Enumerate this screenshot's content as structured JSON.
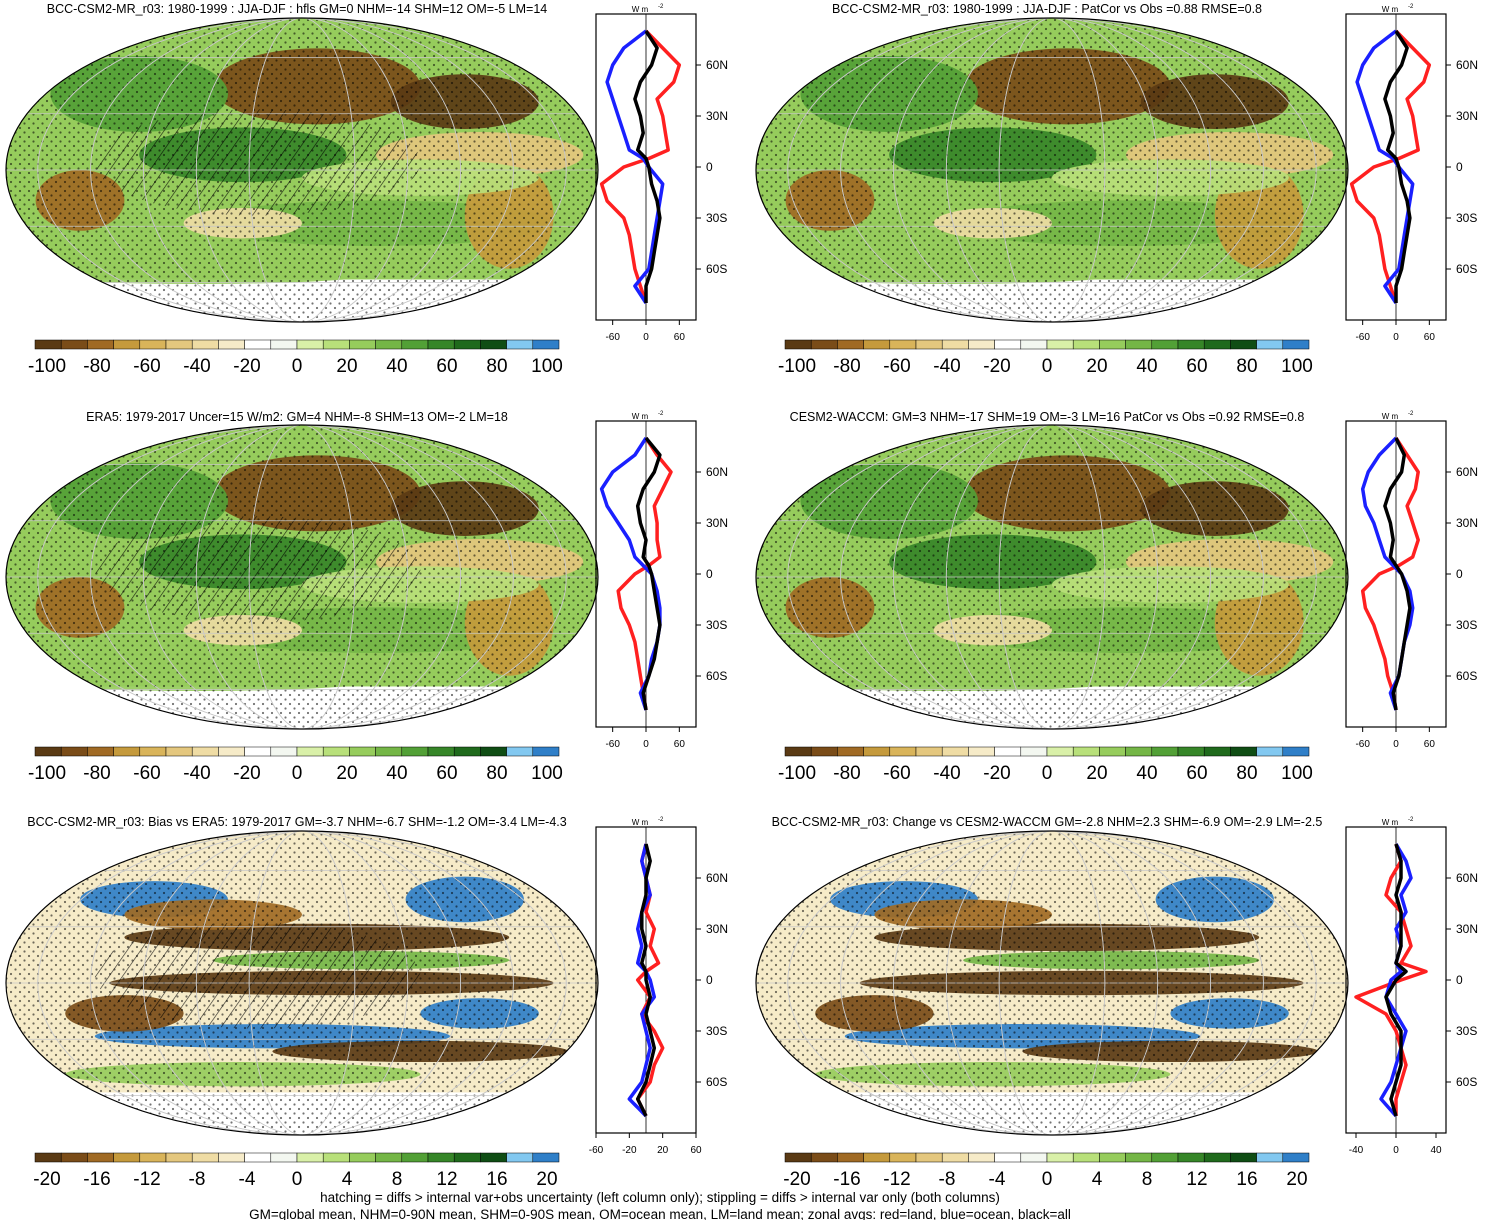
{
  "palette": {
    "diverging": [
      "#5a3a14",
      "#7a4c18",
      "#a06a24",
      "#c59a3c",
      "#d9b45a",
      "#e4c77e",
      "#efdca4",
      "#f6ebc8",
      "#ffffff",
      "#f3f7f0",
      "#d9f0a8",
      "#b8e07a",
      "#96cc5c",
      "#74b646",
      "#52a036",
      "#368628",
      "#1f6a1c",
      "#0f4d14",
      "#82c8f0",
      "#2f7fc8"
    ],
    "ocean_blue": "#2f7fc8",
    "land_red": "#ff2020",
    "ocean_line": "#1a20ff",
    "all_line": "#000000"
  },
  "zonal_axis": {
    "units": "W m",
    "units_sup": "-2",
    "lat_ticks": [
      "60N",
      "30N",
      "0",
      "30S",
      "60S"
    ]
  },
  "panels": [
    {
      "id": "p1",
      "title": "BCC-CSM2-MR_r03: 1980-1999 : JJA-DJF : hfls GM=0 NHM=-14 SHM=12 OM=-5 LM=14",
      "colorbar_labels": [
        "-100",
        "-80",
        "-60",
        "-40",
        "-20",
        "0",
        "20",
        "40",
        "60",
        "80",
        "100"
      ],
      "zonal_ticks": [
        "-60",
        "0",
        "60"
      ],
      "zonal_range": [
        -90,
        90
      ],
      "hatched": true,
      "zonal": {
        "lat": [
          80,
          70,
          60,
          50,
          40,
          30,
          20,
          10,
          5,
          0,
          -10,
          -20,
          -30,
          -40,
          -50,
          -60,
          -70,
          -80
        ],
        "land": [
          0,
          30,
          60,
          50,
          20,
          30,
          35,
          40,
          5,
          -40,
          -80,
          -70,
          -40,
          -30,
          -25,
          -20,
          -10,
          0
        ],
        "ocean": [
          0,
          -40,
          -60,
          -70,
          -60,
          -50,
          -40,
          -30,
          -5,
          5,
          30,
          25,
          20,
          15,
          10,
          5,
          -20,
          0
        ],
        "all": [
          0,
          20,
          10,
          -10,
          -20,
          -10,
          -5,
          -15,
          0,
          5,
          10,
          20,
          25,
          20,
          15,
          10,
          0,
          0
        ]
      }
    },
    {
      "id": "p2",
      "title": "BCC-CSM2-MR_r03: 1980-1999 : JJA-DJF : PatCor vs Obs =0.88 RMSE=0.8",
      "colorbar_labels": [
        "-100",
        "-80",
        "-60",
        "-40",
        "-20",
        "0",
        "20",
        "40",
        "60",
        "80",
        "100"
      ],
      "zonal_ticks": [
        "-60",
        "0",
        "60"
      ],
      "zonal_range": [
        -90,
        90
      ],
      "hatched": false,
      "zonal": {
        "lat": [
          80,
          70,
          60,
          50,
          40,
          30,
          20,
          10,
          5,
          0,
          -10,
          -20,
          -30,
          -40,
          -50,
          -60,
          -70,
          -80
        ],
        "land": [
          0,
          30,
          60,
          50,
          20,
          30,
          35,
          40,
          5,
          -40,
          -80,
          -70,
          -40,
          -30,
          -25,
          -20,
          -10,
          0
        ],
        "ocean": [
          0,
          -40,
          -60,
          -70,
          -60,
          -50,
          -40,
          -30,
          -5,
          5,
          30,
          25,
          20,
          15,
          10,
          5,
          -20,
          0
        ],
        "all": [
          0,
          20,
          10,
          -10,
          -20,
          -10,
          -5,
          -15,
          0,
          5,
          10,
          20,
          25,
          20,
          15,
          10,
          0,
          0
        ]
      }
    },
    {
      "id": "p3",
      "title": "ERA5: 1979-2017 Uncer=15 W/m2: GM=4 NHM=-8 SHM=13 OM=-2 LM=18",
      "colorbar_labels": [
        "-100",
        "-80",
        "-60",
        "-40",
        "-20",
        "0",
        "20",
        "40",
        "60",
        "80",
        "100"
      ],
      "zonal_ticks": [
        "-60",
        "0",
        "60"
      ],
      "zonal_range": [
        -90,
        90
      ],
      "hatched": true,
      "zonal": {
        "lat": [
          80,
          70,
          60,
          50,
          40,
          30,
          20,
          10,
          5,
          0,
          -10,
          -20,
          -30,
          -40,
          -50,
          -60,
          -70,
          -80
        ],
        "land": [
          0,
          20,
          45,
          30,
          15,
          20,
          20,
          25,
          5,
          -20,
          -50,
          -45,
          -30,
          -20,
          -15,
          -10,
          -5,
          0
        ],
        "ocean": [
          0,
          -20,
          -60,
          -80,
          -70,
          -50,
          -30,
          -20,
          -5,
          10,
          20,
          25,
          25,
          20,
          10,
          5,
          -10,
          0
        ],
        "all": [
          0,
          25,
          15,
          -5,
          -15,
          -10,
          0,
          -5,
          5,
          10,
          15,
          20,
          25,
          20,
          15,
          5,
          -5,
          0
        ]
      }
    },
    {
      "id": "p4",
      "title": "CESM2-WACCM: GM=3 NHM=-17 SHM=19 OM=-3 LM=16 PatCor vs Obs =0.92 RMSE=0.8",
      "colorbar_labels": [
        "-100",
        "-80",
        "-60",
        "-40",
        "-20",
        "0",
        "20",
        "40",
        "60",
        "80",
        "100"
      ],
      "zonal_ticks": [
        "-60",
        "0",
        "60"
      ],
      "zonal_range": [
        -90,
        90
      ],
      "hatched": false,
      "zonal": {
        "lat": [
          80,
          70,
          60,
          50,
          40,
          30,
          20,
          10,
          5,
          0,
          -10,
          -20,
          -30,
          -40,
          -50,
          -60,
          -70,
          -80
        ],
        "land": [
          0,
          20,
          40,
          35,
          20,
          30,
          40,
          30,
          5,
          -30,
          -60,
          -55,
          -40,
          -30,
          -20,
          -15,
          -5,
          0
        ],
        "ocean": [
          0,
          -30,
          -50,
          -60,
          -55,
          -40,
          -30,
          -20,
          -5,
          10,
          25,
          30,
          25,
          15,
          10,
          5,
          -10,
          0
        ],
        "all": [
          0,
          15,
          10,
          -10,
          -20,
          -10,
          -5,
          -10,
          0,
          10,
          20,
          25,
          20,
          15,
          10,
          5,
          -5,
          0
        ]
      }
    },
    {
      "id": "p5",
      "title": "BCC-CSM2-MR_r03: Bias vs ERA5: 1979-2017 GM=-3.7 NHM=-6.7 SHM=-1.2 OM=-3.4 LM=-4.3",
      "colorbar_labels": [
        "-20",
        "-16",
        "-12",
        "-8",
        "-4",
        "0",
        "4",
        "8",
        "12",
        "16",
        "20"
      ],
      "zonal_ticks": [
        "-60",
        "-20",
        "20",
        "60"
      ],
      "zonal_range": [
        -60,
        60
      ],
      "hatched": true,
      "zonal": {
        "lat": [
          80,
          70,
          60,
          50,
          40,
          30,
          20,
          10,
          5,
          0,
          -10,
          -20,
          -30,
          -40,
          -50,
          -60,
          -70,
          -80
        ],
        "land": [
          0,
          -5,
          0,
          5,
          0,
          10,
          5,
          15,
          0,
          -10,
          5,
          -5,
          10,
          20,
          10,
          5,
          -10,
          0
        ],
        "ocean": [
          0,
          -5,
          0,
          5,
          -5,
          -10,
          -5,
          -10,
          0,
          5,
          10,
          -5,
          0,
          5,
          0,
          -5,
          -20,
          0
        ],
        "all": [
          0,
          5,
          0,
          0,
          -5,
          -5,
          0,
          -5,
          0,
          0,
          5,
          0,
          5,
          10,
          5,
          0,
          -10,
          0
        ]
      }
    },
    {
      "id": "p6",
      "title": "BCC-CSM2-MR_r03: Change vs CESM2-WACCM GM=-2.8 NHM=2.3 SHM=-6.9 OM=-2.9 LM=-2.5",
      "colorbar_labels": [
        "-20",
        "-16",
        "-12",
        "-8",
        "-4",
        "0",
        "4",
        "8",
        "12",
        "16",
        "20"
      ],
      "zonal_ticks": [
        "-40",
        "0",
        "40"
      ],
      "zonal_range": [
        -50,
        50
      ],
      "hatched": false,
      "zonal": {
        "lat": [
          80,
          70,
          60,
          50,
          40,
          30,
          20,
          10,
          5,
          0,
          -10,
          -20,
          -30,
          -40,
          -50,
          -60,
          -70,
          -80
        ],
        "land": [
          0,
          5,
          -5,
          -10,
          5,
          10,
          15,
          5,
          30,
          5,
          -40,
          -10,
          0,
          5,
          10,
          5,
          0,
          0
        ],
        "ocean": [
          0,
          10,
          15,
          5,
          10,
          0,
          5,
          0,
          5,
          -5,
          -10,
          0,
          10,
          5,
          0,
          -5,
          -15,
          0
        ],
        "all": [
          0,
          5,
          5,
          0,
          5,
          5,
          5,
          0,
          10,
          0,
          -10,
          -5,
          5,
          5,
          5,
          0,
          -5,
          0
        ]
      }
    }
  ],
  "footer": {
    "line1": "hatching = diffs > internal var+obs uncertainty (left column only); stippling = diffs > internal var only (both columns)",
    "line2": "GM=global mean, NHM=0-90N mean, SHM=0-90S mean, OM=ocean mean, LM=land mean; zonal avgs: red=land, blue=ocean, black=all"
  }
}
